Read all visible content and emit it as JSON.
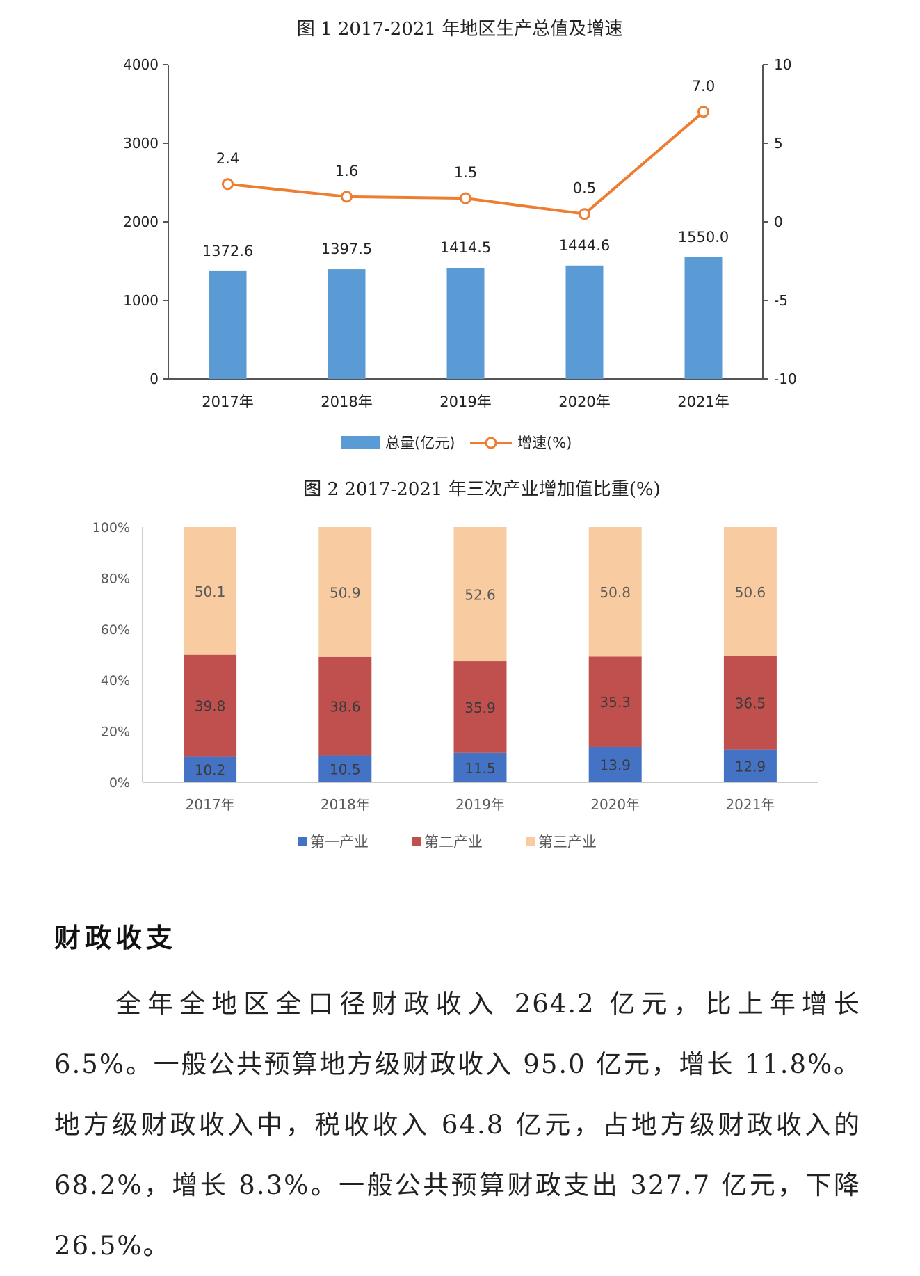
{
  "chart_data": [
    {
      "type": "bar+line",
      "title": "图 1 2017-2021 年地区生产总值及增速",
      "categories": [
        "2017年",
        "2018年",
        "2019年",
        "2020年",
        "2021年"
      ],
      "series": [
        {
          "name": "总量(亿元)",
          "kind": "bar",
          "axis": "left",
          "values": [
            1372.6,
            1397.5,
            1414.5,
            1444.6,
            1550.0
          ],
          "labels": [
            "1372.6",
            "1397.5",
            "1414.5",
            "1444.6",
            "1550.0"
          ],
          "color": "#5b9bd5"
        },
        {
          "name": "增速(%)",
          "kind": "line",
          "axis": "right",
          "values": [
            2.4,
            1.6,
            1.5,
            0.5,
            7.0
          ],
          "labels": [
            "2.4",
            "1.6",
            "1.5",
            "0.5",
            "7.0"
          ],
          "color": "#ed7d31"
        }
      ],
      "y_left": {
        "ylim": [
          0,
          4000
        ],
        "ticks": [
          "0",
          "1000",
          "2000",
          "3000",
          "4000"
        ],
        "tick_values": [
          0,
          1000,
          2000,
          3000,
          4000
        ]
      },
      "y_right": {
        "ylim": [
          -10,
          10
        ],
        "ticks": [
          "-10",
          "-5",
          "0",
          "5",
          "10"
        ],
        "tick_values": [
          -10,
          -5,
          0,
          5,
          10
        ]
      },
      "legend": "bottom-center"
    },
    {
      "type": "stacked-bar-percent",
      "title": "图 2 2017-2021 年三次产业增加值比重(%)",
      "categories": [
        "2017年",
        "2018年",
        "2019年",
        "2020年",
        "2021年"
      ],
      "series": [
        {
          "name": "第一产业",
          "values": [
            10.2,
            10.5,
            11.5,
            13.9,
            12.9
          ],
          "labels": [
            "10.2",
            "10.5",
            "11.5",
            "13.9",
            "12.9"
          ],
          "color": "#4472c4"
        },
        {
          "name": "第二产业",
          "values": [
            39.8,
            38.6,
            35.9,
            35.3,
            36.5
          ],
          "labels": [
            "39.8",
            "38.6",
            "35.9",
            "35.3",
            "36.5"
          ],
          "color": "#c0504d"
        },
        {
          "name": "第三产业",
          "values": [
            50.1,
            50.9,
            52.6,
            50.8,
            50.6
          ],
          "labels": [
            "50.1",
            "50.9",
            "52.6",
            "50.8",
            "50.6"
          ],
          "color": "#f8cba1"
        }
      ],
      "y": {
        "ylim": [
          0,
          100
        ],
        "ticks": [
          "0%",
          "20%",
          "40%",
          "60%",
          "80%",
          "100%"
        ],
        "tick_values": [
          0,
          20,
          40,
          60,
          80,
          100
        ]
      },
      "legend": "bottom-center"
    }
  ],
  "section": {
    "title": "财政收支",
    "paragraph": "全年全地区全口径财政收入 264.2 亿元，比上年增长 6.5%。一般公共预算地方级财政收入 95.0 亿元，增长 11.8%。地方级财政收入中，税收收入 64.8 亿元，占地方级财政收入的 68.2%，增长 8.3%。一般公共预算财政支出 327.7 亿元，下降 26.5%。"
  }
}
